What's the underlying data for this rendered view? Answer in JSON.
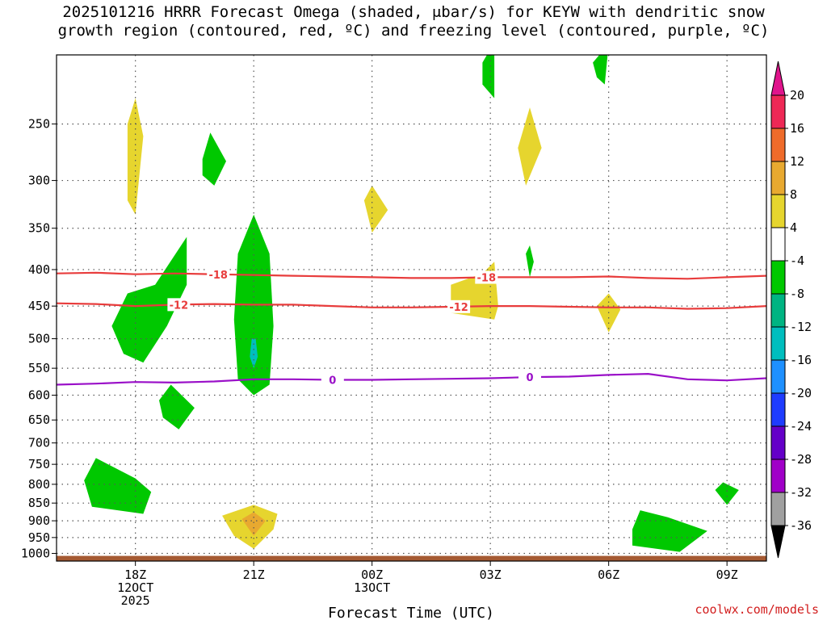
{
  "title": {
    "line1": "2025101216 HRRR Forecast Omega (shaded, μbar/s) for KEYW with dendritic snow",
    "line2": "growth region (contoured, red, ºC) and freezing level (contoured, purple, ºC)"
  },
  "credit": "coolwx.com/models",
  "chart_data": {
    "type": "heatmap",
    "xlabel": "Forecast Time (UTC)",
    "x_range_hours_utc": [
      16,
      34
    ],
    "y_log_scale": true,
    "y_range_hpa": [
      1025,
      200
    ],
    "x_ticks": [
      {
        "hour": 18,
        "lines": [
          "18Z",
          "12OCT",
          "2025"
        ]
      },
      {
        "hour": 21,
        "lines": [
          "21Z"
        ]
      },
      {
        "hour": 24,
        "lines": [
          "00Z",
          "13OCT"
        ]
      },
      {
        "hour": 27,
        "lines": [
          "03Z"
        ]
      },
      {
        "hour": 30,
        "lines": [
          "06Z"
        ]
      },
      {
        "hour": 33,
        "lines": [
          "09Z"
        ]
      }
    ],
    "y_ticks": [
      250,
      300,
      350,
      400,
      450,
      500,
      550,
      600,
      650,
      700,
      750,
      800,
      850,
      900,
      950,
      1000
    ],
    "grid": true,
    "colorbar": {
      "labels": [
        "20",
        "16",
        "12",
        "8",
        "4",
        "-4",
        "-8",
        "-12",
        "-16",
        "-20",
        "-24",
        "-28",
        "-32",
        "-36"
      ],
      "bins": [
        "#ee2856",
        "#ef6b2a",
        "#e8a930",
        "#e6d52e",
        "#ffffff",
        "#00c800",
        "#00b482",
        "#00bebe",
        "#1e90ff",
        "#1e3cff",
        "#6400c8",
        "#a000c8",
        "#a0a0a0"
      ],
      "top_arrow_color": "#e0148c",
      "bottom_arrow_color": "#000000"
    },
    "contours": [
      {
        "label": "-18",
        "color": "#e83c3c",
        "label_hours": [
          20.1,
          26.9
        ],
        "points": [
          [
            16,
            405
          ],
          [
            17,
            404
          ],
          [
            18,
            406
          ],
          [
            19,
            405
          ],
          [
            20,
            406
          ],
          [
            21,
            407
          ],
          [
            22,
            408
          ],
          [
            23,
            409
          ],
          [
            24,
            410
          ],
          [
            25,
            411
          ],
          [
            26,
            411
          ],
          [
            27,
            410
          ],
          [
            28,
            410
          ],
          [
            29,
            410
          ],
          [
            30,
            409
          ],
          [
            31,
            411
          ],
          [
            32,
            412
          ],
          [
            33,
            410
          ],
          [
            34,
            408
          ]
        ]
      },
      {
        "label": "-12",
        "color": "#e83c3c",
        "label_hours": [
          19.1,
          26.2
        ],
        "points": [
          [
            16,
            446
          ],
          [
            17,
            447
          ],
          [
            18,
            450
          ],
          [
            19,
            448
          ],
          [
            20,
            447
          ],
          [
            21,
            448
          ],
          [
            22,
            448
          ],
          [
            23,
            450
          ],
          [
            24,
            452
          ],
          [
            25,
            452
          ],
          [
            26,
            451
          ],
          [
            27,
            450
          ],
          [
            28,
            450
          ],
          [
            29,
            451
          ],
          [
            30,
            452
          ],
          [
            31,
            452
          ],
          [
            32,
            454
          ],
          [
            33,
            453
          ],
          [
            34,
            450
          ]
        ]
      },
      {
        "label": "0",
        "color": "#9a10c8",
        "label_hours": [
          23.0,
          28.0
        ],
        "points": [
          [
            16,
            580
          ],
          [
            17,
            578
          ],
          [
            18,
            575
          ],
          [
            19,
            576
          ],
          [
            20,
            574
          ],
          [
            21,
            570
          ],
          [
            22,
            570
          ],
          [
            23,
            571
          ],
          [
            24,
            571
          ],
          [
            25,
            570
          ],
          [
            26,
            569
          ],
          [
            27,
            568
          ],
          [
            28,
            566
          ],
          [
            29,
            565
          ],
          [
            30,
            562
          ],
          [
            31,
            560
          ],
          [
            32,
            570
          ],
          [
            33,
            572
          ],
          [
            34,
            568
          ]
        ]
      }
    ],
    "omega_regions": [
      {
        "value": -6,
        "color": "#00c800",
        "points": [
          [
            17.4,
            480
          ],
          [
            17.8,
            432
          ],
          [
            18.5,
            420
          ],
          [
            19.3,
            360
          ],
          [
            19.3,
            420
          ],
          [
            18.8,
            480
          ],
          [
            18.2,
            540
          ],
          [
            17.7,
            525
          ]
        ]
      },
      {
        "value": -6,
        "color": "#00c800",
        "points": [
          [
            20.6,
            380
          ],
          [
            21.0,
            335
          ],
          [
            21.4,
            380
          ],
          [
            21.5,
            480
          ],
          [
            21.4,
            580
          ],
          [
            21.0,
            600
          ],
          [
            20.6,
            570
          ],
          [
            20.5,
            470
          ]
        ]
      },
      {
        "value": -6,
        "color": "#00c800",
        "points": [
          [
            19.7,
            280
          ],
          [
            19.9,
            257
          ],
          [
            20.3,
            282
          ],
          [
            20.0,
            305
          ],
          [
            19.7,
            295
          ]
        ]
      },
      {
        "value": -6,
        "color": "#00c800",
        "points": [
          [
            18.6,
            610
          ],
          [
            18.9,
            580
          ],
          [
            19.5,
            625
          ],
          [
            19.1,
            670
          ],
          [
            18.7,
            645
          ]
        ]
      },
      {
        "value": -6,
        "color": "#00c800",
        "points": [
          [
            16.7,
            790
          ],
          [
            17.0,
            735
          ],
          [
            18.0,
            785
          ],
          [
            18.4,
            820
          ],
          [
            18.2,
            880
          ],
          [
            16.9,
            860
          ]
        ]
      },
      {
        "value": -6,
        "color": "#00c800",
        "points": [
          [
            26.8,
            205
          ],
          [
            27.1,
            192
          ],
          [
            27.1,
            230
          ],
          [
            26.8,
            220
          ]
        ]
      },
      {
        "value": -6,
        "color": "#00c800",
        "points": [
          [
            29.6,
            205
          ],
          [
            30.0,
            193
          ],
          [
            29.9,
            220
          ],
          [
            29.7,
            215
          ]
        ]
      },
      {
        "value": -6,
        "color": "#00c800",
        "points": [
          [
            27.9,
            380
          ],
          [
            28.0,
            370
          ],
          [
            28.1,
            390
          ],
          [
            28.0,
            410
          ]
        ]
      },
      {
        "value": -6,
        "color": "#00c800",
        "points": [
          [
            30.6,
            925
          ],
          [
            30.8,
            870
          ],
          [
            31.5,
            890
          ],
          [
            32.5,
            930
          ],
          [
            31.8,
            995
          ],
          [
            30.6,
            975
          ]
        ]
      },
      {
        "value": -6,
        "color": "#00c800",
        "points": [
          [
            32.7,
            815
          ],
          [
            32.9,
            795
          ],
          [
            33.3,
            815
          ],
          [
            33.0,
            855
          ]
        ]
      },
      {
        "value": -10,
        "color": "#00bebe",
        "points": [
          [
            20.95,
            500
          ],
          [
            21.05,
            500
          ],
          [
            21.1,
            530
          ],
          [
            21.0,
            550
          ],
          [
            20.9,
            530
          ]
        ]
      },
      {
        "value": 6,
        "color": "#e6d52e",
        "points": [
          [
            17.8,
            250
          ],
          [
            18.0,
            230
          ],
          [
            18.2,
            260
          ],
          [
            18.0,
            335
          ],
          [
            17.8,
            320
          ]
        ]
      },
      {
        "value": 6,
        "color": "#e6d52e",
        "points": [
          [
            23.8,
            320
          ],
          [
            24.0,
            305
          ],
          [
            24.4,
            330
          ],
          [
            24.0,
            355
          ]
        ]
      },
      {
        "value": 6,
        "color": "#e6d52e",
        "points": [
          [
            27.7,
            270
          ],
          [
            28.0,
            237
          ],
          [
            28.3,
            270
          ],
          [
            27.9,
            305
          ]
        ]
      },
      {
        "value": 6,
        "color": "#e6d52e",
        "points": [
          [
            26.0,
            420
          ],
          [
            26.8,
            405
          ],
          [
            27.1,
            390
          ],
          [
            27.2,
            450
          ],
          [
            27.1,
            470
          ],
          [
            26.0,
            460
          ]
        ]
      },
      {
        "value": 6,
        "color": "#e6d52e",
        "points": [
          [
            29.7,
            450
          ],
          [
            30.0,
            432
          ],
          [
            30.3,
            455
          ],
          [
            30.0,
            490
          ]
        ]
      },
      {
        "value": 6,
        "color": "#e6d52e",
        "points": [
          [
            20.2,
            885
          ],
          [
            21.0,
            855
          ],
          [
            21.6,
            880
          ],
          [
            21.5,
            925
          ],
          [
            21.0,
            985
          ],
          [
            20.5,
            945
          ]
        ]
      },
      {
        "value": 10,
        "color": "#e8a930",
        "points": [
          [
            20.7,
            895
          ],
          [
            21.0,
            875
          ],
          [
            21.3,
            900
          ],
          [
            21.0,
            945
          ]
        ]
      }
    ],
    "ground": {
      "color": "#a55a32",
      "top_hpa": 1008
    }
  }
}
